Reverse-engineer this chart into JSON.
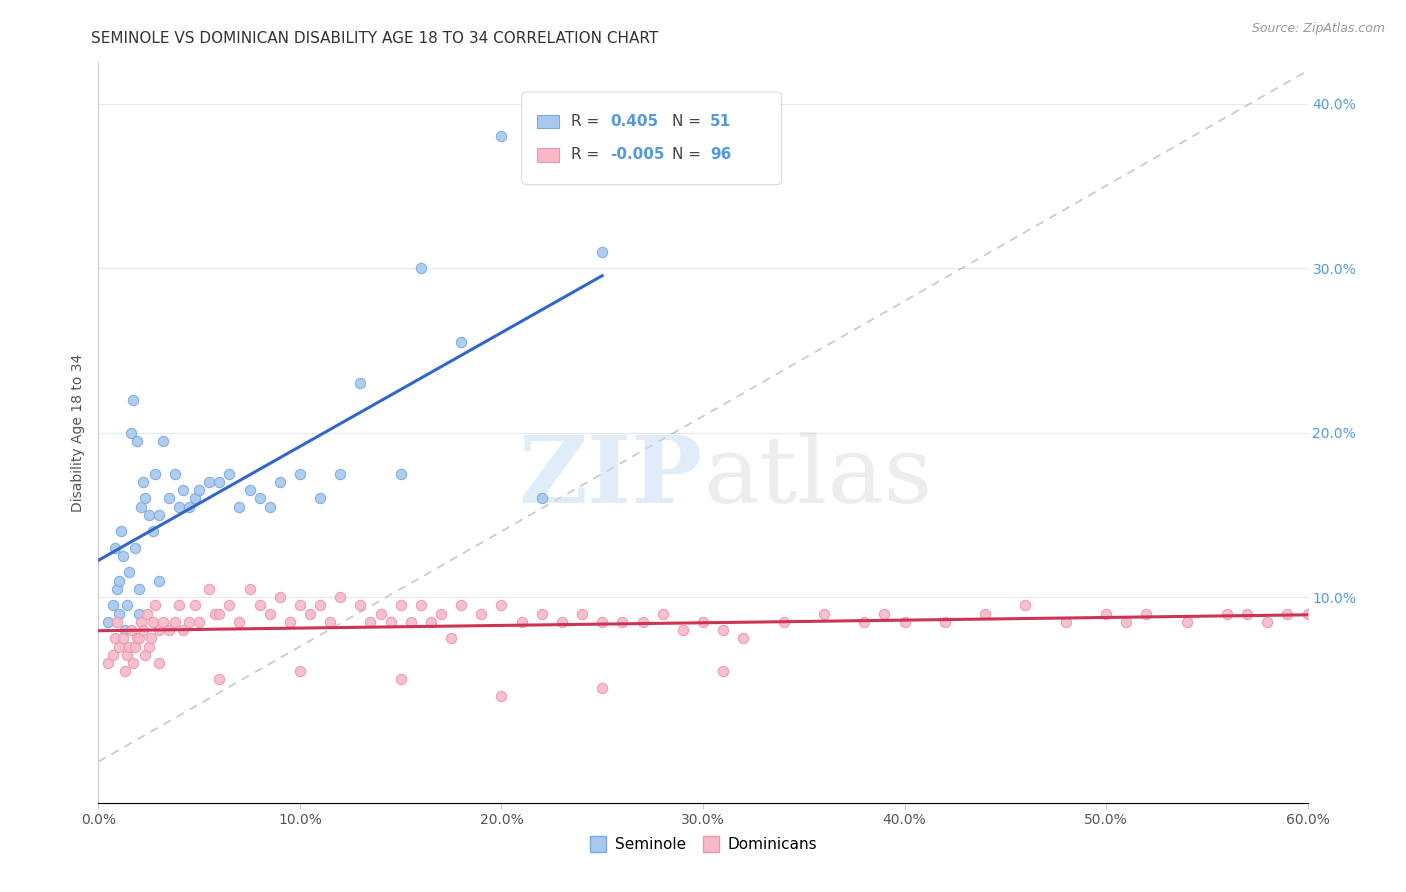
{
  "title": "SEMINOLE VS DOMINICAN DISABILITY AGE 18 TO 34 CORRELATION CHART",
  "source": "Source: ZipAtlas.com",
  "ylabel": "Disability Age 18 to 34",
  "xlim": [
    0.0,
    0.6
  ],
  "ylim": [
    -0.025,
    0.425
  ],
  "xtick_vals": [
    0.0,
    0.1,
    0.2,
    0.3,
    0.4,
    0.5,
    0.6
  ],
  "ytick_vals": [
    0.1,
    0.2,
    0.3,
    0.4
  ],
  "seminole_color": "#A8C8F0",
  "seminole_edge_color": "#7AAAD8",
  "dominican_color": "#F8B8C8",
  "dominican_edge_color": "#E898B0",
  "seminole_line_color": "#3366CC",
  "dominican_line_color": "#CC3355",
  "diagonal_line_color": "#BBBBBB",
  "background_color": "#FFFFFF",
  "grid_color": "#E8E8F0",
  "right_tick_color": "#5599DD",
  "R_seminole": 0.405,
  "N_seminole": 51,
  "R_dominican": -0.005,
  "N_dominican": 96,
  "seminole_x": [
    0.005,
    0.007,
    0.008,
    0.009,
    0.01,
    0.01,
    0.011,
    0.012,
    0.013,
    0.014,
    0.015,
    0.016,
    0.017,
    0.018,
    0.019,
    0.02,
    0.02,
    0.021,
    0.022,
    0.023,
    0.025,
    0.027,
    0.028,
    0.03,
    0.03,
    0.032,
    0.035,
    0.038,
    0.04,
    0.042,
    0.045,
    0.048,
    0.05,
    0.055,
    0.06,
    0.065,
    0.07,
    0.075,
    0.08,
    0.085,
    0.09,
    0.1,
    0.11,
    0.12,
    0.13,
    0.15,
    0.16,
    0.18,
    0.2,
    0.22,
    0.25
  ],
  "seminole_y": [
    0.085,
    0.095,
    0.13,
    0.105,
    0.09,
    0.11,
    0.14,
    0.125,
    0.08,
    0.095,
    0.115,
    0.2,
    0.22,
    0.13,
    0.195,
    0.09,
    0.105,
    0.155,
    0.17,
    0.16,
    0.15,
    0.14,
    0.175,
    0.11,
    0.15,
    0.195,
    0.16,
    0.175,
    0.155,
    0.165,
    0.155,
    0.16,
    0.165,
    0.17,
    0.17,
    0.175,
    0.155,
    0.165,
    0.16,
    0.155,
    0.17,
    0.175,
    0.16,
    0.175,
    0.23,
    0.175,
    0.3,
    0.255,
    0.38,
    0.16,
    0.31
  ],
  "dominican_x": [
    0.005,
    0.007,
    0.008,
    0.009,
    0.01,
    0.012,
    0.013,
    0.014,
    0.015,
    0.016,
    0.017,
    0.018,
    0.019,
    0.02,
    0.021,
    0.022,
    0.023,
    0.024,
    0.025,
    0.026,
    0.027,
    0.028,
    0.03,
    0.032,
    0.035,
    0.038,
    0.04,
    0.042,
    0.045,
    0.048,
    0.05,
    0.055,
    0.058,
    0.06,
    0.065,
    0.07,
    0.075,
    0.08,
    0.085,
    0.09,
    0.095,
    0.1,
    0.105,
    0.11,
    0.115,
    0.12,
    0.13,
    0.135,
    0.14,
    0.145,
    0.15,
    0.155,
    0.16,
    0.165,
    0.17,
    0.175,
    0.18,
    0.19,
    0.2,
    0.21,
    0.22,
    0.23,
    0.24,
    0.25,
    0.26,
    0.27,
    0.28,
    0.29,
    0.3,
    0.31,
    0.32,
    0.34,
    0.36,
    0.38,
    0.39,
    0.4,
    0.42,
    0.44,
    0.46,
    0.48,
    0.5,
    0.51,
    0.52,
    0.54,
    0.56,
    0.57,
    0.58,
    0.59,
    0.6,
    0.31,
    0.25,
    0.2,
    0.15,
    0.1,
    0.06,
    0.03
  ],
  "dominican_y": [
    0.06,
    0.065,
    0.075,
    0.085,
    0.07,
    0.075,
    0.055,
    0.065,
    0.07,
    0.08,
    0.06,
    0.07,
    0.075,
    0.075,
    0.085,
    0.08,
    0.065,
    0.09,
    0.07,
    0.075,
    0.085,
    0.095,
    0.08,
    0.085,
    0.08,
    0.085,
    0.095,
    0.08,
    0.085,
    0.095,
    0.085,
    0.105,
    0.09,
    0.09,
    0.095,
    0.085,
    0.105,
    0.095,
    0.09,
    0.1,
    0.085,
    0.095,
    0.09,
    0.095,
    0.085,
    0.1,
    0.095,
    0.085,
    0.09,
    0.085,
    0.095,
    0.085,
    0.095,
    0.085,
    0.09,
    0.075,
    0.095,
    0.09,
    0.095,
    0.085,
    0.09,
    0.085,
    0.09,
    0.085,
    0.085,
    0.085,
    0.09,
    0.08,
    0.085,
    0.08,
    0.075,
    0.085,
    0.09,
    0.085,
    0.09,
    0.085,
    0.085,
    0.09,
    0.095,
    0.085,
    0.09,
    0.085,
    0.09,
    0.085,
    0.09,
    0.09,
    0.085,
    0.09,
    0.09,
    0.055,
    0.045,
    0.04,
    0.05,
    0.055,
    0.05,
    0.06
  ],
  "watermark_zip": "ZIP",
  "watermark_atlas": "atlas",
  "title_fontsize": 11,
  "axis_label_fontsize": 10,
  "tick_fontsize": 10,
  "legend_fontsize": 11
}
